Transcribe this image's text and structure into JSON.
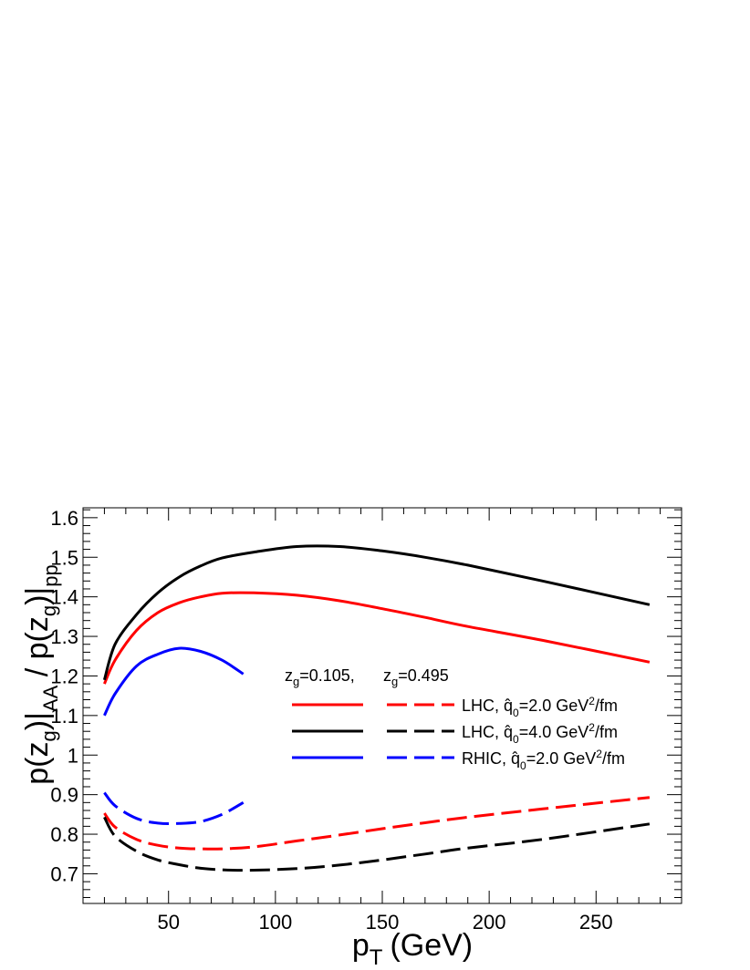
{
  "chart_data": {
    "type": "line",
    "xlabel": "p",
    "xlabel_sub": "T",
    "xlabel_unit": "(GeV)",
    "ylabel": "p(z_g)|_AA / p(z_g)|_pp",
    "xlim": [
      10,
      290
    ],
    "ylim": [
      0.625,
      1.625
    ],
    "x_ticks": [
      50,
      100,
      150,
      200,
      250
    ],
    "y_ticks": [
      0.7,
      0.8,
      0.9,
      1,
      1.1,
      1.2,
      1.3,
      1.4,
      1.5,
      1.6
    ],
    "y_tick_labels": [
      "0.7",
      "0.8",
      "0.9",
      "1",
      "1.1",
      "1.2",
      "1.3",
      "1.4",
      "1.5",
      "1.6"
    ],
    "grid": false,
    "legend": {
      "position": "center-right",
      "header_solid": "z_g=0.105,",
      "header_dashed": "z_g=0.495",
      "entries": [
        {
          "label": "LHC, q̂_0=2.0 GeV²/fm",
          "color": "#ff0000"
        },
        {
          "label": "LHC, q̂_0=4.0 GeV²/fm",
          "color": "#000000"
        },
        {
          "label": "RHIC, q̂_0=2.0 GeV²/fm",
          "color": "#0000ff"
        }
      ]
    },
    "series": [
      {
        "group": "LHC q0=2.0",
        "zg": "0.105",
        "color": "#ff0000",
        "dash": "solid",
        "x": [
          20,
          25,
          35,
          45,
          55,
          65,
          75,
          90,
          110,
          130,
          150,
          170,
          190,
          225,
          275
        ],
        "y": [
          1.18,
          1.24,
          1.315,
          1.36,
          1.385,
          1.4,
          1.409,
          1.41,
          1.404,
          1.39,
          1.37,
          1.348,
          1.325,
          1.29,
          1.235
        ]
      },
      {
        "group": "LHC q0=4.0",
        "zg": "0.105",
        "color": "#000000",
        "dash": "solid",
        "x": [
          20,
          25,
          35,
          45,
          55,
          65,
          75,
          90,
          110,
          130,
          150,
          170,
          190,
          225,
          275
        ],
        "y": [
          1.19,
          1.28,
          1.355,
          1.41,
          1.45,
          1.478,
          1.498,
          1.513,
          1.527,
          1.527,
          1.516,
          1.5,
          1.48,
          1.44,
          1.38
        ]
      },
      {
        "group": "RHIC q0=2.0",
        "zg": "0.105",
        "color": "#0000ff",
        "dash": "solid",
        "x": [
          20,
          25,
          35,
          45,
          55,
          65,
          75,
          85
        ],
        "y": [
          1.1,
          1.155,
          1.225,
          1.255,
          1.27,
          1.262,
          1.24,
          1.205
        ]
      },
      {
        "group": "LHC q0=2.0",
        "zg": "0.495",
        "color": "#ff0000",
        "dash": "dashed",
        "x": [
          20,
          25,
          35,
          45,
          55,
          65,
          75,
          90,
          110,
          130,
          150,
          170,
          190,
          225,
          275
        ],
        "y": [
          0.853,
          0.818,
          0.787,
          0.772,
          0.765,
          0.763,
          0.763,
          0.768,
          0.783,
          0.798,
          0.814,
          0.829,
          0.843,
          0.864,
          0.893
        ]
      },
      {
        "group": "LHC q0=4.0",
        "zg": "0.495",
        "color": "#000000",
        "dash": "dashed",
        "x": [
          20,
          25,
          35,
          45,
          55,
          65,
          75,
          90,
          110,
          130,
          150,
          170,
          190,
          225,
          275
        ],
        "y": [
          0.843,
          0.795,
          0.757,
          0.735,
          0.723,
          0.714,
          0.71,
          0.709,
          0.713,
          0.722,
          0.735,
          0.75,
          0.765,
          0.787,
          0.826
        ]
      },
      {
        "group": "RHIC q0=2.0",
        "zg": "0.495",
        "color": "#0000ff",
        "dash": "dashed",
        "x": [
          20,
          25,
          35,
          45,
          55,
          65,
          75,
          85
        ],
        "y": [
          0.905,
          0.872,
          0.84,
          0.828,
          0.827,
          0.832,
          0.85,
          0.88
        ]
      }
    ]
  }
}
